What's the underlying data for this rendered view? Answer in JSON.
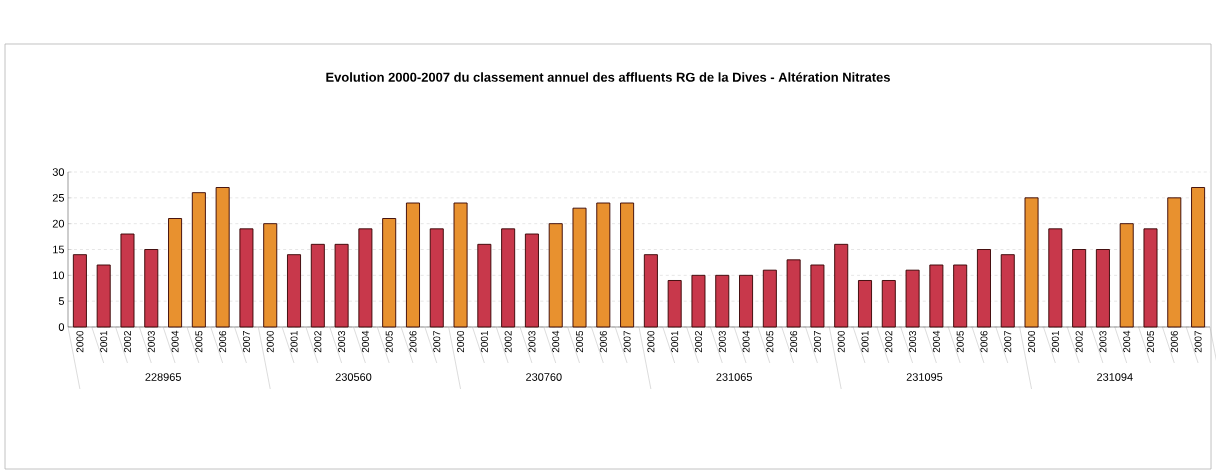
{
  "chart_data": {
    "type": "bar",
    "title": "Evolution 2000-2007 du classement annuel des affluents RG de la Dives - Altération Nitrates",
    "categories": [
      "2000",
      "2001",
      "2002",
      "2003",
      "2004",
      "2005",
      "2006",
      "2007",
      "2000",
      "2001",
      "2002",
      "2003",
      "2004",
      "2005",
      "2006",
      "2007",
      "2000",
      "2001",
      "2002",
      "2003",
      "2004",
      "2005",
      "2006",
      "2007",
      "2000",
      "2001",
      "2002",
      "2003",
      "2004",
      "2005",
      "2006",
      "2007",
      "2000",
      "2001",
      "2002",
      "2003",
      "2004",
      "2005",
      "2006",
      "2007",
      "2000",
      "2001",
      "2002",
      "2003",
      "2004",
      "2005",
      "2006",
      "2007"
    ],
    "values": [
      14,
      12,
      18,
      15,
      21,
      26,
      27,
      19,
      20,
      14,
      16,
      16,
      19,
      21,
      24,
      19,
      24,
      16,
      19,
      18,
      20,
      23,
      24,
      24,
      14,
      9,
      10,
      10,
      10,
      11,
      13,
      12,
      16,
      9,
      9,
      11,
      12,
      12,
      15,
      14,
      25,
      19,
      15,
      15,
      20,
      19,
      25,
      27
    ],
    "colors": [
      "#c8384b",
      "#c8384b",
      "#c8384b",
      "#c8384b",
      "#e8912f",
      "#e8912f",
      "#e8912f",
      "#c8384b",
      "#e8912f",
      "#c8384b",
      "#c8384b",
      "#c8384b",
      "#c8384b",
      "#e8912f",
      "#e8912f",
      "#c8384b",
      "#e8912f",
      "#c8384b",
      "#c8384b",
      "#c8384b",
      "#e8912f",
      "#e8912f",
      "#e8912f",
      "#e8912f",
      "#c8384b",
      "#c8384b",
      "#c8384b",
      "#c8384b",
      "#c8384b",
      "#c8384b",
      "#c8384b",
      "#c8384b",
      "#c8384b",
      "#c8384b",
      "#c8384b",
      "#c8384b",
      "#c8384b",
      "#c8384b",
      "#c8384b",
      "#c8384b",
      "#e8912f",
      "#c8384b",
      "#c8384b",
      "#c8384b",
      "#e8912f",
      "#c8384b",
      "#e8912f",
      "#e8912f"
    ],
    "annotations": [
      "228965",
      "230560",
      "230760",
      "231065",
      "231095",
      "231094"
    ],
    "ylim": [
      0,
      30
    ],
    "yticks": [
      0,
      5,
      10,
      15,
      20,
      25,
      30
    ],
    "grid": "y"
  }
}
